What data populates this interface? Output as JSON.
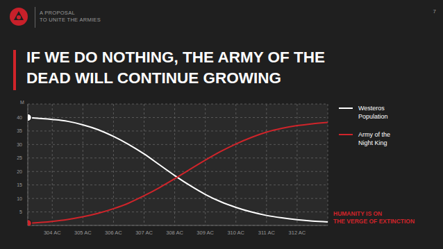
{
  "header": {
    "lines": [
      "A PROPOSAL",
      "TO UNITE THE ARMIES"
    ],
    "page": 7
  },
  "chart_data": {
    "type": "line",
    "title": [
      "IF WE DO NOTHING, THE ARMY OF THE",
      "DEAD WILL CONTINUE GROWING"
    ],
    "ylabel": "M",
    "annotation": [
      "HUMANITY IS ON",
      "THE VERGE OF EXTINCTION"
    ],
    "x": [
      303.2,
      304,
      304.5,
      305,
      305.5,
      306,
      306.5,
      307,
      307.5,
      308,
      308.5,
      309,
      309.5,
      310,
      310.5,
      311,
      311.5,
      312,
      312.5,
      313
    ],
    "series": [
      {
        "name": "Westeros Population",
        "color": "#ffffff",
        "values": [
          40,
          39.3,
          38.6,
          37.3,
          35.5,
          33,
          30,
          26.5,
          22.5,
          18.5,
          14.8,
          11.5,
          8.8,
          6.7,
          5,
          3.7,
          2.8,
          2.1,
          1.6,
          1.3
        ]
      },
      {
        "name": "Army of the Night King",
        "color": "#d0242a",
        "values": [
          0.8,
          1.5,
          2.2,
          3.2,
          4.5,
          6.2,
          8.3,
          11,
          14,
          17.3,
          20.8,
          24.2,
          27.4,
          30.2,
          32.6,
          34.6,
          36,
          37,
          37.7,
          38.2
        ]
      }
    ],
    "xlim": [
      303.2,
      313
    ],
    "xticks": [
      {
        "value": 304,
        "label": "304 AC"
      },
      {
        "value": 305,
        "label": "305 AC"
      },
      {
        "value": 306,
        "label": "306 AC"
      },
      {
        "value": 307,
        "label": "307 AC"
      },
      {
        "value": 308,
        "label": "308 AC"
      },
      {
        "value": 309,
        "label": "309 AC"
      },
      {
        "value": 310,
        "label": "310 AC"
      },
      {
        "value": 311,
        "label": "311 AC"
      },
      {
        "value": 312,
        "label": "312 AC"
      }
    ],
    "ylim": [
      0,
      45
    ],
    "yticks": [
      5,
      10,
      15,
      20,
      25,
      30,
      35,
      40
    ],
    "grid": true
  }
}
